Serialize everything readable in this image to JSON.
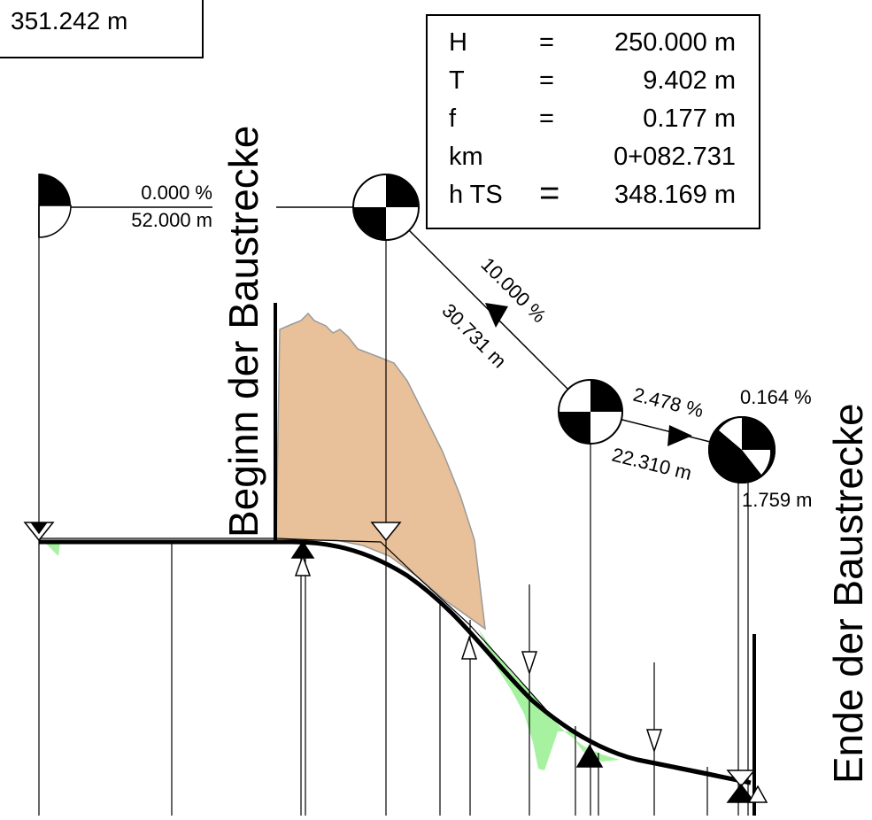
{
  "elevation_label": "351.242 m",
  "info_box": {
    "rows": [
      {
        "key": "H",
        "sep": "=",
        "value": "250.000 m"
      },
      {
        "key": "T",
        "sep": "=",
        "value": "9.402 m"
      },
      {
        "key": "f",
        "sep": "=",
        "value": "0.177 m"
      },
      {
        "key": "km",
        "sep": "",
        "value": "0+082.731"
      },
      {
        "key": "h TS",
        "sep": "=",
        "value": "348.169 m"
      }
    ]
  },
  "segments": [
    {
      "grade": "0.000 %",
      "length": "52.000 m"
    },
    {
      "grade": "10.000 %",
      "length": "30.731 m"
    },
    {
      "grade": "2.478 %",
      "length": "22.310 m"
    },
    {
      "grade": "0.164 %",
      "length": "1.759 m"
    }
  ],
  "labels": {
    "start": "Beginn der Baustrecke",
    "end": "Ende der Baustrecke"
  },
  "colors": {
    "cut_fill": "#e8c099",
    "cut_stroke": "#9a9a9a",
    "embankment_fill": "#a6f2a0",
    "line": "#000000"
  }
}
